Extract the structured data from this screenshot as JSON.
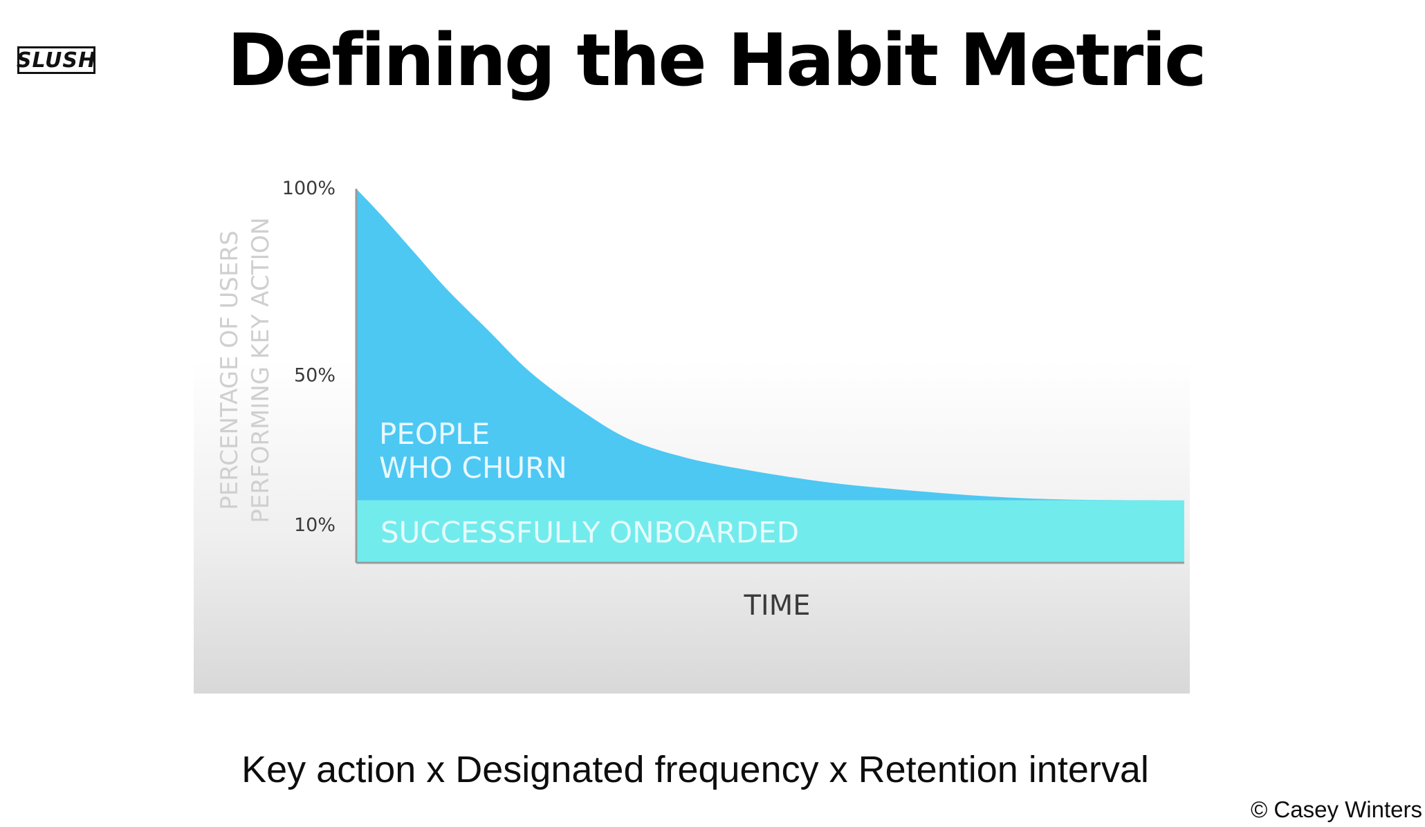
{
  "header": {
    "logo_text": "SLUSH",
    "title": "Defining the Habit Metric"
  },
  "chart_data": {
    "type": "area",
    "title": "",
    "xlabel": "TIME",
    "ylabel_lines": [
      "PERCENTAGE OF USERS",
      "PERFORMING KEY ACTION"
    ],
    "y_ticks": [
      {
        "value": 100,
        "label": "100%"
      },
      {
        "value": 50,
        "label": "50%"
      },
      {
        "value": 10,
        "label": "10%"
      }
    ],
    "ylim": [
      -10,
      100
    ],
    "xlim": [
      0,
      1
    ],
    "series": [
      {
        "name": "PEOPLE WHO CHURN",
        "label_lines": [
          "PEOPLE",
          "WHO CHURN"
        ],
        "color": "#4cc8f3",
        "x": [
          0,
          0.03,
          0.07,
          0.11,
          0.16,
          0.21,
          0.27,
          0.33,
          0.4,
          0.48,
          0.57,
          0.66,
          0.76,
          0.86,
          1.0
        ],
        "y": [
          100,
          93,
          83,
          73,
          62,
          51,
          41,
          33,
          28,
          24.5,
          21.5,
          19.5,
          17.8,
          16.9,
          16.7
        ]
      },
      {
        "name": "SUCCESSFULLY ONBOARDED",
        "label_lines": [
          "SUCCESSFULLY ONBOARDED"
        ],
        "color": "#72ebed",
        "x": [
          0,
          1
        ],
        "y": [
          16.7,
          16.7
        ]
      }
    ],
    "colors": {
      "axis": "#9a9a9a",
      "tick_text": "#3a3a3a",
      "ylabel_text": "#cfcfcf",
      "xlabel_text": "#3a3a3a",
      "band_label": "#e7fbfc",
      "area_label": "#eaf8ff"
    }
  },
  "footer": {
    "formula": "Key action x Designated frequency x Retention interval",
    "credit": "© Casey Winters"
  }
}
